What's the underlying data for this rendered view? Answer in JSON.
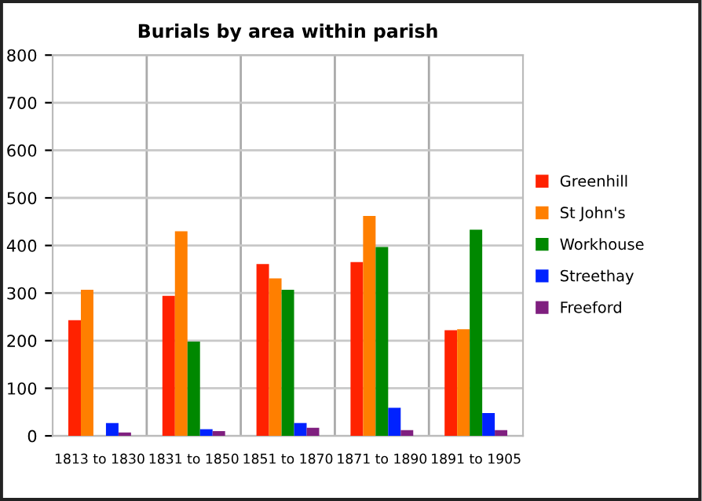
{
  "chart_data": {
    "type": "bar",
    "title": "Burials by area within parish",
    "categories": [
      "1813 to 1830",
      "1831 to 1850",
      "1851 to 1870",
      "1871 to 1890",
      "1891 to 1905"
    ],
    "series": [
      {
        "name": "Greenhill",
        "color": "#ff2200",
        "values": [
          243,
          294,
          361,
          365,
          222
        ]
      },
      {
        "name": "St John's",
        "color": "#ff7f00",
        "values": [
          307,
          430,
          331,
          462,
          224
        ]
      },
      {
        "name": "Workhouse",
        "color": "#008800",
        "values": [
          0,
          198,
          307,
          397,
          433
        ]
      },
      {
        "name": "Streethay",
        "color": "#0022ff",
        "values": [
          27,
          14,
          27,
          59,
          48
        ]
      },
      {
        "name": "Freeford",
        "color": "#7f1f7f",
        "values": [
          7,
          10,
          17,
          12,
          12
        ]
      }
    ],
    "ylim": [
      0,
      800
    ],
    "yticks": [
      0,
      100,
      200,
      300,
      400,
      500,
      600,
      700,
      800
    ],
    "grid": true,
    "legend": "right"
  }
}
